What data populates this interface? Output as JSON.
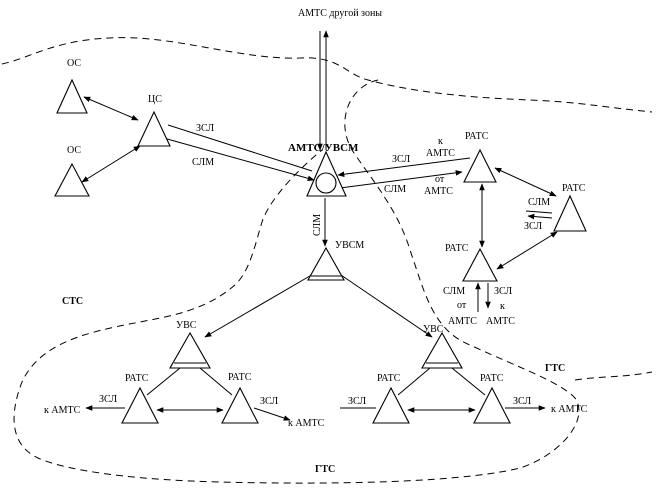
{
  "top_source": "АМТС другой зоны",
  "central": {
    "label": "АМТС/УВСМ"
  },
  "nodes": {
    "os1": "ОС",
    "os2": "ОС",
    "cs": "ЦС",
    "ratsR1": "РАТС",
    "ratsR2": "РАТС",
    "ratsR3": "РАТС",
    "uvsm": "УВСМ",
    "uvsL": "УВС",
    "uvsR": "УВС",
    "ratsLL": "РАТС",
    "ratsLR": "РАТС",
    "ratsRL": "РАТС",
    "ratsRR": "РАТС"
  },
  "line_labels": {
    "cs_zsl": "ЗСЛ",
    "cs_slm": "СЛМ",
    "vertical_slm": "СЛМ",
    "r_zsl": "ЗСЛ",
    "r_slm": "СЛМ",
    "r_k": "к",
    "r_amts1": "АМТС",
    "r_ot": "от",
    "r_amts2": "АМТС",
    "r3_slm": "СЛМ",
    "r3_zsl": "ЗСЛ",
    "r2_slm": "СЛМ",
    "r2_ot": "от",
    "r2_amts1": "АМТС",
    "r2_zsl": "ЗСЛ",
    "r2_k": "к",
    "r2_amts2": "АМТС",
    "ll_zsl": "ЗСЛ",
    "ll_kamts": "к АМТС",
    "lr_zsl": "ЗСЛ",
    "lr_kamts": "к АМТС",
    "rl_zsl": "ЗСЛ",
    "rr_zsl": "ЗСЛ",
    "rr_kamts": "к АМТС"
  },
  "zone_labels": {
    "stc": "СТС",
    "gtc_right": "ГТС",
    "gtc_bottom": "ГТС"
  }
}
